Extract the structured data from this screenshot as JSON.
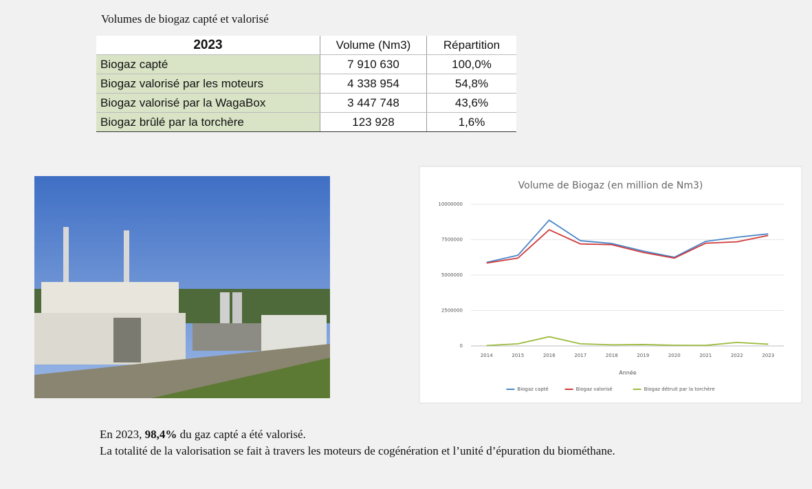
{
  "header": {
    "title": "Volumes de biogaz capté et valorisé"
  },
  "table": {
    "columns": [
      "2023",
      "Volume (Nm3)",
      "Répartition"
    ],
    "rows": [
      [
        "Biogaz capté",
        "7 910 630",
        "100,0%"
      ],
      [
        "Biogaz valorisé par les moteurs",
        "4 338 954",
        "54,8%"
      ],
      [
        "Biogaz valorisé par la WagaBox",
        "3 447 748",
        "43,6%"
      ],
      [
        "Biogaz brûlé par la torchère",
        "123 928",
        "1,6%"
      ]
    ]
  },
  "chart_data": {
    "type": "line",
    "title": "Volume de Biogaz (en million de Nm3)",
    "x_label": "Année",
    "categories": [
      "2014",
      "2015",
      "2016",
      "2017",
      "2018",
      "2019",
      "2020",
      "2021",
      "2022",
      "2023"
    ],
    "series": [
      {
        "name": "Biogaz capté",
        "color": "#4a86c8",
        "values": [
          5900000,
          6400000,
          8880000,
          7430000,
          7230000,
          6700000,
          6260000,
          7380000,
          7670000,
          7910000
        ]
      },
      {
        "name": "Biogaz valorisé",
        "color": "#d03a3a",
        "values": [
          5850000,
          6200000,
          8200000,
          7200000,
          7150000,
          6600000,
          6200000,
          7250000,
          7350000,
          7800000
        ]
      },
      {
        "name": "Biogaz détruit par la torchère",
        "color": "#9bbb3c",
        "values": [
          30000,
          150000,
          650000,
          150000,
          80000,
          100000,
          50000,
          40000,
          250000,
          124000
        ]
      }
    ],
    "ylim": [
      0,
      10000000
    ],
    "yticks": [
      0,
      2500000,
      5000000,
      7500000,
      10000000
    ],
    "grid": true,
    "legend": "bottom"
  },
  "footer": {
    "line1": {
      "before": "En 2023, ",
      "bold": "98,4%",
      "after": " du gaz capté a été valorisé."
    },
    "line2": "La totalité de la valorisation se fait à travers les moteurs de cogénération et l’unité d’épuration du biométhane."
  }
}
